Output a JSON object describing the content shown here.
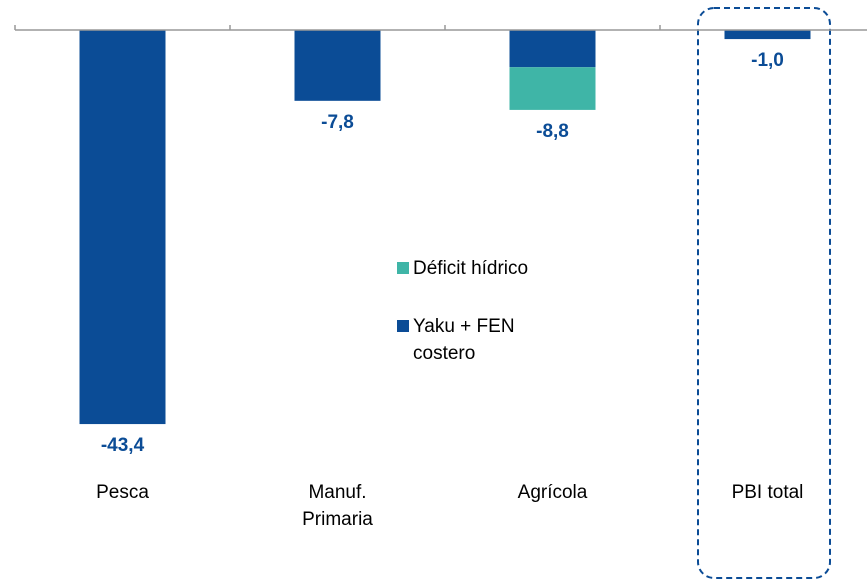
{
  "chart_data": {
    "type": "bar",
    "stacked": true,
    "categories": [
      "Pesca",
      "Manuf. Primaria",
      "Agrícola",
      "PBI total"
    ],
    "series": [
      {
        "name": "Yaku + FEN costero",
        "color": "#0b4c96",
        "values": [
          -43.4,
          -7.8,
          -4.1,
          -1.0
        ]
      },
      {
        "name": "Déficit hídrico",
        "color": "#3fb5a7",
        "values": [
          null,
          null,
          -4.7,
          null
        ]
      }
    ],
    "totals": [
      -43.4,
      -7.8,
      -8.8,
      -1.0
    ],
    "total_labels": [
      "-43,4",
      "-7,8",
      "-8,8",
      "-1,0"
    ],
    "ylim": [
      -50,
      0
    ]
  }
}
